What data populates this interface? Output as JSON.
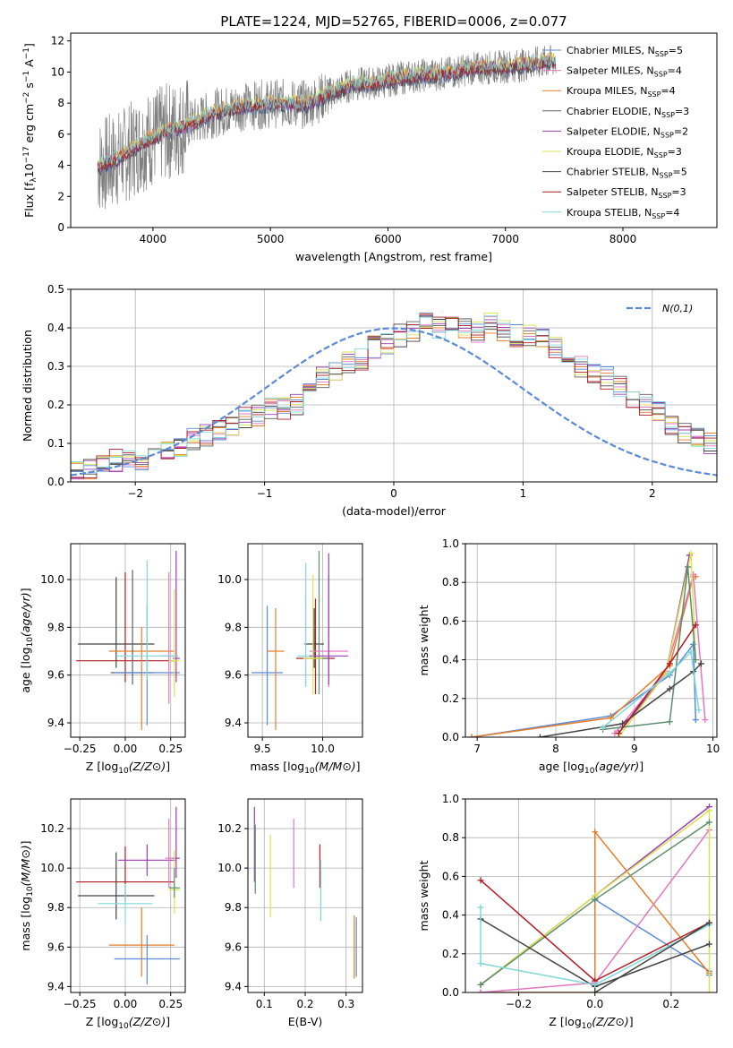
{
  "figure_title": "PLATE=1224, MJD=52765, FIBERID=0006, z=0.077",
  "colors": {
    "chabrier_miles": "#5b8bd6",
    "salpeter_miles": "#e377c2",
    "kroupa_miles": "#e87d29",
    "chabrier_elodie": "#5f5f5f",
    "salpeter_elodie": "#9b3db3",
    "kroupa_elodie": "#d9e34f",
    "chabrier_stelib": "#444444",
    "salpeter_stelib": "#b01c24",
    "kroupa_stelib": "#7fd8d8",
    "data": "#808080",
    "normal": "#5b8bd6",
    "gaussian_green": "#5b8f6b"
  },
  "chart_data": [
    {
      "id": "spectrum",
      "type": "line",
      "xlabel": "wavelength [Angstrom, rest frame]",
      "ylabel": "Flux [f_λ 10^-17 erg cm^-2 s^-1 A^-1]",
      "ylabel_parts": {
        "a": "Flux [f",
        "sub": "λ",
        "b": "10",
        "sup1": "−17",
        "c": " erg cm",
        "sup2": "−2",
        "d": " s",
        "sup3": "−1",
        "e": " A",
        "sup4": "−1",
        "f": "]"
      },
      "xlim": [
        3300,
        8800
      ],
      "ylim": [
        0,
        12.5
      ],
      "xticks": [
        4000,
        5000,
        6000,
        7000,
        8000
      ],
      "yticks": [
        0,
        2,
        4,
        6,
        8,
        10,
        12
      ],
      "x_range_data": [
        3530,
        7430
      ],
      "legend": [
        {
          "base": "Chabrier MILES, N",
          "sub": "SSP",
          "tail": "=5",
          "color": "#5b8bd6"
        },
        {
          "base": "Salpeter MILES, N",
          "sub": "SSP",
          "tail": "=4",
          "color": "#e377c2"
        },
        {
          "base": "Kroupa MILES, N",
          "sub": "SSP",
          "tail": "=4",
          "color": "#e87d29"
        },
        {
          "base": "Chabrier ELODIE, N",
          "sub": "SSP",
          "tail": "=3",
          "color": "#5f5f5f"
        },
        {
          "base": "Salpeter ELODIE, N",
          "sub": "SSP",
          "tail": "=2",
          "color": "#9b3db3"
        },
        {
          "base": "Kroupa ELODIE, N",
          "sub": "SSP",
          "tail": "=3",
          "color": "#d9e34f"
        },
        {
          "base": "Chabrier STELIB, N",
          "sub": "SSP",
          "tail": "=5",
          "color": "#444444"
        },
        {
          "base": "Salpeter STELIB, N",
          "sub": "SSP",
          "tail": "=3",
          "color": "#b01c24"
        },
        {
          "base": "Kroupa STELIB, N",
          "sub": "SSP",
          "tail": "=4",
          "color": "#7fd8d8"
        }
      ],
      "continuum": [
        [
          3530,
          3.9
        ],
        [
          3700,
          4.4
        ],
        [
          3900,
          5.4
        ],
        [
          4100,
          6.1
        ],
        [
          4300,
          6.6
        ],
        [
          4500,
          7.3
        ],
        [
          4700,
          7.7
        ],
        [
          4900,
          7.9
        ],
        [
          5100,
          8.0
        ],
        [
          5300,
          7.9
        ],
        [
          5500,
          8.6
        ],
        [
          5700,
          9.2
        ],
        [
          5900,
          9.3
        ],
        [
          6100,
          9.6
        ],
        [
          6300,
          9.8
        ],
        [
          6500,
          9.9
        ],
        [
          6700,
          10.2
        ],
        [
          6900,
          10.3
        ],
        [
          7100,
          10.4
        ],
        [
          7300,
          10.6
        ],
        [
          7430,
          10.7
        ]
      ]
    },
    {
      "id": "residuals",
      "type": "histogram",
      "xlabel": "(data-model)/error",
      "ylabel": "Normed distribution",
      "xlim": [
        -2.5,
        2.5
      ],
      "ylim": [
        0,
        0.5
      ],
      "xticks": [
        -2,
        -1,
        0,
        1,
        2
      ],
      "yticks": [
        0.0,
        0.1,
        0.2,
        0.3,
        0.4,
        0.5
      ],
      "legend": [
        {
          "label": "N(0,1)",
          "color": "#5b8bd6"
        }
      ],
      "bin_width": 0.1,
      "base_values": [
        0.03,
        0.035,
        0.045,
        0.055,
        0.06,
        0.06,
        0.07,
        0.08,
        0.09,
        0.11,
        0.12,
        0.13,
        0.14,
        0.17,
        0.17,
        0.19,
        0.19,
        0.2,
        0.24,
        0.27,
        0.29,
        0.31,
        0.32,
        0.35,
        0.36,
        0.38,
        0.39,
        0.41,
        0.4,
        0.4,
        0.4,
        0.39,
        0.41,
        0.39,
        0.38,
        0.38,
        0.37,
        0.35,
        0.33,
        0.3,
        0.28,
        0.27,
        0.25,
        0.22,
        0.2,
        0.18,
        0.15,
        0.13,
        0.12,
        0.1,
        0.09,
        0.09,
        0.08,
        0.07,
        0.06,
        0.06,
        0.05,
        0.045,
        0.04,
        0.035,
        0.03,
        0.03,
        0.025,
        0.02
      ]
    },
    {
      "id": "age_vs_Z",
      "type": "errorbar",
      "xlabel": "Z [log10(Z/Z⊙)]",
      "ylabel": "age [log10(age/yr)]",
      "xlim": [
        -0.3,
        0.33
      ],
      "ylim": [
        9.34,
        10.15
      ],
      "xticks": [
        -0.25,
        0.0,
        0.25
      ],
      "yticks": [
        9.4,
        9.6,
        9.8,
        10.0
      ],
      "points": [
        {
          "x": -0.05,
          "y": 9.73,
          "xerr": 0.21,
          "yerr": [
            0.1,
            0.28
          ],
          "color": "#444444"
        },
        {
          "x": 0.0,
          "y": 9.66,
          "xerr": 0.27,
          "yerr": [
            0.09,
            0.37
          ],
          "color": "#b01c24"
        },
        {
          "x": 0.09,
          "y": 9.7,
          "xerr": 0.18,
          "yerr": [
            0.33,
            0.1
          ],
          "color": "#e87d29"
        },
        {
          "x": 0.04,
          "y": 9.61,
          "xerr": 0.12,
          "yerr": [
            0.05,
            0.43
          ],
          "color": "#5f5f5f"
        },
        {
          "x": 0.12,
          "y": 9.61,
          "xerr": 0.18,
          "yerr": [
            0.22,
            0.28
          ],
          "color": "#5b8bd6"
        },
        {
          "x": 0.24,
          "y": 9.68,
          "xerr": 0.05,
          "yerr": [
            0.2,
            0.35
          ],
          "color": "#e377c2"
        },
        {
          "x": 0.28,
          "y": 9.67,
          "xerr": 0.02,
          "yerr": [
            0.1,
            0.45
          ],
          "color": "#9b3db3"
        },
        {
          "x": 0.27,
          "y": 9.66,
          "xerr": 0.03,
          "yerr": [
            0.15,
            0.3
          ],
          "color": "#d9e34f"
        },
        {
          "x": 0.12,
          "y": 9.68,
          "xerr": 0.17,
          "yerr": [
            0.1,
            0.4
          ],
          "color": "#7fd8d8"
        }
      ]
    },
    {
      "id": "age_vs_mass",
      "type": "errorbar",
      "xlabel": "mass [log10(M/M⊙)]",
      "xlim": [
        9.38,
        10.33
      ],
      "ylim": [
        9.34,
        10.15
      ],
      "xticks": [
        9.5,
        10.0
      ],
      "yticks": [
        9.4,
        9.6,
        9.8,
        10.0
      ],
      "points": [
        {
          "x": 9.54,
          "y": 9.61,
          "xerr": 0.13,
          "yerr": [
            0.22,
            0.28
          ],
          "color": "#5b8bd6"
        },
        {
          "x": 9.61,
          "y": 9.7,
          "xerr": 0.07,
          "yerr": [
            0.33,
            0.18
          ],
          "color": "#e87d29"
        },
        {
          "x": 9.93,
          "y": 9.73,
          "xerr": 0.08,
          "yerr": [
            0.1,
            0.15
          ],
          "color": "#444444"
        },
        {
          "x": 9.86,
          "y": 9.68,
          "xerr": 0.07,
          "yerr": [
            0.13,
            0.39
          ],
          "color": "#7fd8d8"
        },
        {
          "x": 9.94,
          "y": 9.67,
          "xerr": 0.16,
          "yerr": [
            0.15,
            0.25
          ],
          "color": "#b01c24"
        },
        {
          "x": 9.97,
          "y": 9.67,
          "xerr": 0.07,
          "yerr": [
            0.15,
            0.45
          ],
          "color": "#5b8f6b"
        },
        {
          "x": 10.05,
          "y": 9.7,
          "xerr": 0.16,
          "yerr": [
            0.15,
            0.32
          ],
          "color": "#e377c2"
        },
        {
          "x": 10.05,
          "y": 9.68,
          "xerr": 0.16,
          "yerr": [
            0.12,
            0.43
          ],
          "color": "#9b3db3"
        },
        {
          "x": 9.92,
          "y": 9.67,
          "xerr": 0.08,
          "yerr": [
            0.15,
            0.35
          ],
          "color": "#d9e34f"
        }
      ]
    },
    {
      "id": "mass_weight_vs_age",
      "type": "line",
      "xlabel": "age [log10(age/yr)]",
      "ylabel": "mass weight",
      "xlim": [
        6.85,
        10.05
      ],
      "ylim": [
        0,
        1
      ],
      "xticks": [
        7,
        8,
        9,
        10
      ],
      "yticks": [
        0.0,
        0.2,
        0.4,
        0.6,
        0.8,
        1.0
      ],
      "series": [
        {
          "color": "#5b8bd6",
          "x": [
            6.93,
            8.7,
            9.45,
            9.75,
            9.78
          ],
          "y": [
            0.0,
            0.11,
            0.32,
            0.48,
            0.09
          ]
        },
        {
          "color": "#e87d29",
          "x": [
            6.93,
            8.7,
            9.45,
            9.75,
            9.78
          ],
          "y": [
            0.0,
            0.1,
            0.37,
            0.83,
            0.83
          ]
        },
        {
          "color": "#e377c2",
          "x": [
            8.75,
            9.4,
            9.75,
            9.9
          ],
          "y": [
            0.02,
            0.34,
            0.84,
            0.09
          ]
        },
        {
          "color": "#9b3db3",
          "x": [
            8.8,
            9.4,
            9.7
          ],
          "y": [
            0.02,
            0.33,
            0.94
          ]
        },
        {
          "color": "#d9e34f",
          "x": [
            8.8,
            9.4,
            9.72,
            9.78
          ],
          "y": [
            0.0,
            0.33,
            0.95,
            0.4
          ]
        },
        {
          "color": "#5b8f6b",
          "x": [
            8.6,
            9.45,
            9.68,
            9.78
          ],
          "y": [
            0.04,
            0.08,
            0.88,
            0.4
          ]
        },
        {
          "color": "#444444",
          "x": [
            7.8,
            8.85,
            9.45,
            9.75,
            9.85
          ],
          "y": [
            0.0,
            0.07,
            0.25,
            0.34,
            0.38
          ]
        },
        {
          "color": "#b01c24",
          "x": [
            8.8,
            9.45,
            9.78
          ],
          "y": [
            0.02,
            0.38,
            0.58
          ]
        },
        {
          "color": "#7fd8d8",
          "x": [
            8.6,
            9.45,
            9.72,
            9.82
          ],
          "y": [
            0.05,
            0.33,
            0.44,
            0.14
          ]
        }
      ]
    },
    {
      "id": "mass_vs_Z",
      "type": "errorbar",
      "xlabel": "Z [log10(Z/Z⊙)]",
      "ylabel": "mass [log10(M/M⊙)]",
      "xlim": [
        -0.3,
        0.33
      ],
      "ylim": [
        9.37,
        10.35
      ],
      "xticks": [
        -0.25,
        0.0,
        0.25
      ],
      "yticks": [
        9.4,
        9.6,
        9.8,
        10.0,
        10.2
      ],
      "points": [
        {
          "x": 0.0,
          "y": 9.93,
          "xerr": 0.27,
          "yerr": [
            0.1,
            0.18
          ],
          "color": "#b01c24"
        },
        {
          "x": -0.05,
          "y": 9.86,
          "xerr": 0.21,
          "yerr": [
            0.12,
            0.22
          ],
          "color": "#444444"
        },
        {
          "x": 0.0,
          "y": 9.82,
          "xerr": 0.15,
          "yerr": [
            0.1,
            0.1
          ],
          "color": "#7fd8d8"
        },
        {
          "x": 0.09,
          "y": 9.61,
          "xerr": 0.18,
          "yerr": [
            0.16,
            0.19
          ],
          "color": "#e87d29"
        },
        {
          "x": 0.12,
          "y": 9.54,
          "xerr": 0.18,
          "yerr": [
            0.13,
            0.12
          ],
          "color": "#5b8bd6"
        },
        {
          "x": 0.12,
          "y": 10.04,
          "xerr": 0.16,
          "yerr": [
            0.08,
            0.08
          ],
          "color": "#9b3db3"
        },
        {
          "x": 0.24,
          "y": 10.05,
          "xerr": 0.02,
          "yerr": [
            0.15,
            0.2
          ],
          "color": "#e377c2"
        },
        {
          "x": 0.28,
          "y": 10.05,
          "xerr": 0.02,
          "yerr": [
            0.1,
            0.26
          ],
          "color": "#9b3db3"
        },
        {
          "x": 0.27,
          "y": 9.89,
          "xerr": 0.03,
          "yerr": [
            0.12,
            0.2
          ],
          "color": "#d9e34f"
        },
        {
          "x": 0.27,
          "y": 9.9,
          "xerr": 0.03,
          "yerr": [
            0.05,
            0.1
          ],
          "color": "#5b8f6b"
        }
      ]
    },
    {
      "id": "mass_vs_EBV",
      "type": "errorbar",
      "xlabel": "E(B-V)",
      "xlim": [
        0.06,
        0.34
      ],
      "ylim": [
        9.37,
        10.35
      ],
      "xticks": [
        0.1,
        0.2,
        0.3
      ],
      "yticks": [
        9.4,
        9.6,
        9.8,
        10.0,
        10.2
      ],
      "points": [
        {
          "x": 0.076,
          "y": 10.05,
          "xerr": 0,
          "yerr": [
            0.12,
            0.26
          ],
          "color": "#9b3db3"
        },
        {
          "x": 0.078,
          "y": 10.0,
          "xerr": 0,
          "yerr": [
            0.13,
            0.22
          ],
          "color": "#5b8f6b"
        },
        {
          "x": 0.115,
          "y": 9.95,
          "xerr": 0,
          "yerr": [
            0.2,
            0.22
          ],
          "color": "#d9e34f"
        },
        {
          "x": 0.172,
          "y": 10.05,
          "xerr": 0,
          "yerr": [
            0.15,
            0.2
          ],
          "color": "#e377c2"
        },
        {
          "x": 0.236,
          "y": 10.0,
          "xerr": 0,
          "yerr": [
            0.1,
            0.12
          ],
          "color": "#b01c24"
        },
        {
          "x": 0.238,
          "y": 9.88,
          "xerr": 0,
          "yerr": [
            0.15,
            0.16
          ],
          "color": "#7fd8d8"
        },
        {
          "x": 0.32,
          "y": 9.6,
          "xerr": 0,
          "yerr": [
            0.16,
            0.16
          ],
          "color": "#e87d29"
        },
        {
          "x": 0.325,
          "y": 9.6,
          "xerr": 0,
          "yerr": [
            0.15,
            0.15
          ],
          "color": "#5b8bd6"
        }
      ]
    },
    {
      "id": "mass_weight_vs_Z",
      "type": "line",
      "xlabel": "Z [log10(Z/Z⊙)]",
      "ylabel": "mass weight",
      "xlim": [
        -0.34,
        0.32
      ],
      "ylim": [
        0,
        1
      ],
      "xticks": [
        -0.2,
        0.0,
        0.2
      ],
      "yticks": [
        0.0,
        0.2,
        0.4,
        0.6,
        0.8,
        1.0
      ],
      "series": [
        {
          "color": "#5b8bd6",
          "x": [
            0.0,
            0.3,
            0.3
          ],
          "y": [
            0.48,
            0.11,
            0.09
          ]
        },
        {
          "color": "#e87d29",
          "x": [
            -0.3,
            0.0,
            0.0,
            0.3
          ],
          "y": [
            0.0,
            0.0,
            0.83,
            0.1
          ]
        },
        {
          "color": "#e377c2",
          "x": [
            -0.3,
            0.0,
            0.3
          ],
          "y": [
            0.0,
            0.05,
            0.84
          ]
        },
        {
          "color": "#9b3db3",
          "x": [
            -0.3,
            0.0,
            0.3
          ],
          "y": [
            0.04,
            0.5,
            0.96
          ]
        },
        {
          "color": "#d9e34f",
          "x": [
            -0.3,
            0.0,
            0.3,
            0.3
          ],
          "y": [
            0.04,
            0.5,
            0.94,
            0.0
          ]
        },
        {
          "color": "#5b8f6b",
          "x": [
            -0.3,
            0.0,
            0.3
          ],
          "y": [
            0.04,
            0.48,
            0.88
          ]
        },
        {
          "color": "#444444",
          "x": [
            -0.3,
            0.0,
            0.3
          ],
          "y": [
            0.38,
            0.03,
            0.25
          ]
        },
        {
          "color": "#b01c24",
          "x": [
            -0.3,
            0.0,
            0.3
          ],
          "y": [
            0.58,
            0.06,
            0.36
          ]
        },
        {
          "color": "#7fd8d8",
          "x": [
            -0.3,
            -0.3,
            0.0,
            0.3
          ],
          "y": [
            0.44,
            0.15,
            0.04,
            0.35
          ]
        },
        {
          "color": "#444444",
          "x": [
            0.0,
            0.3
          ],
          "y": [
            0.0,
            0.36
          ]
        }
      ]
    }
  ]
}
